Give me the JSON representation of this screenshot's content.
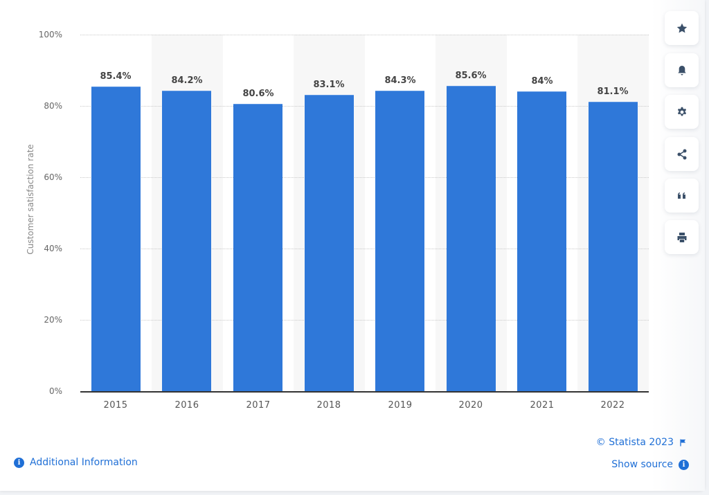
{
  "chart_data": {
    "type": "bar",
    "title": "",
    "xlabel": "",
    "ylabel": "Customer satisfaction rate",
    "categories": [
      "2015",
      "2016",
      "2017",
      "2018",
      "2019",
      "2020",
      "2021",
      "2022"
    ],
    "values": [
      85.4,
      84.2,
      80.6,
      83.1,
      84.3,
      85.6,
      84,
      81.1
    ],
    "value_labels": [
      "85.4%",
      "84.2%",
      "80.6%",
      "83.1%",
      "84.3%",
      "85.6%",
      "84%",
      "81.1%"
    ],
    "ylim": [
      0,
      100
    ],
    "yticks": [
      "100%",
      "80%",
      "60%",
      "40%",
      "20%",
      "0%"
    ],
    "grid": true,
    "legend": null,
    "bar_color": "#2f78d9"
  },
  "toolbar": {
    "items": [
      {
        "name": "favorite",
        "icon": "star-icon"
      },
      {
        "name": "notification",
        "icon": "bell-icon"
      },
      {
        "name": "settings",
        "icon": "gear-icon"
      },
      {
        "name": "share",
        "icon": "share-icon"
      },
      {
        "name": "cite",
        "icon": "quote-icon"
      },
      {
        "name": "print",
        "icon": "print-icon"
      }
    ]
  },
  "footer": {
    "additional_info": "Additional Information",
    "copyright": "© Statista 2023",
    "show_source": "Show source",
    "info_glyph": "i"
  },
  "colors": {
    "accent": "#1f6fd6",
    "bar": "#2f78d9",
    "icon": "#3b5069"
  }
}
